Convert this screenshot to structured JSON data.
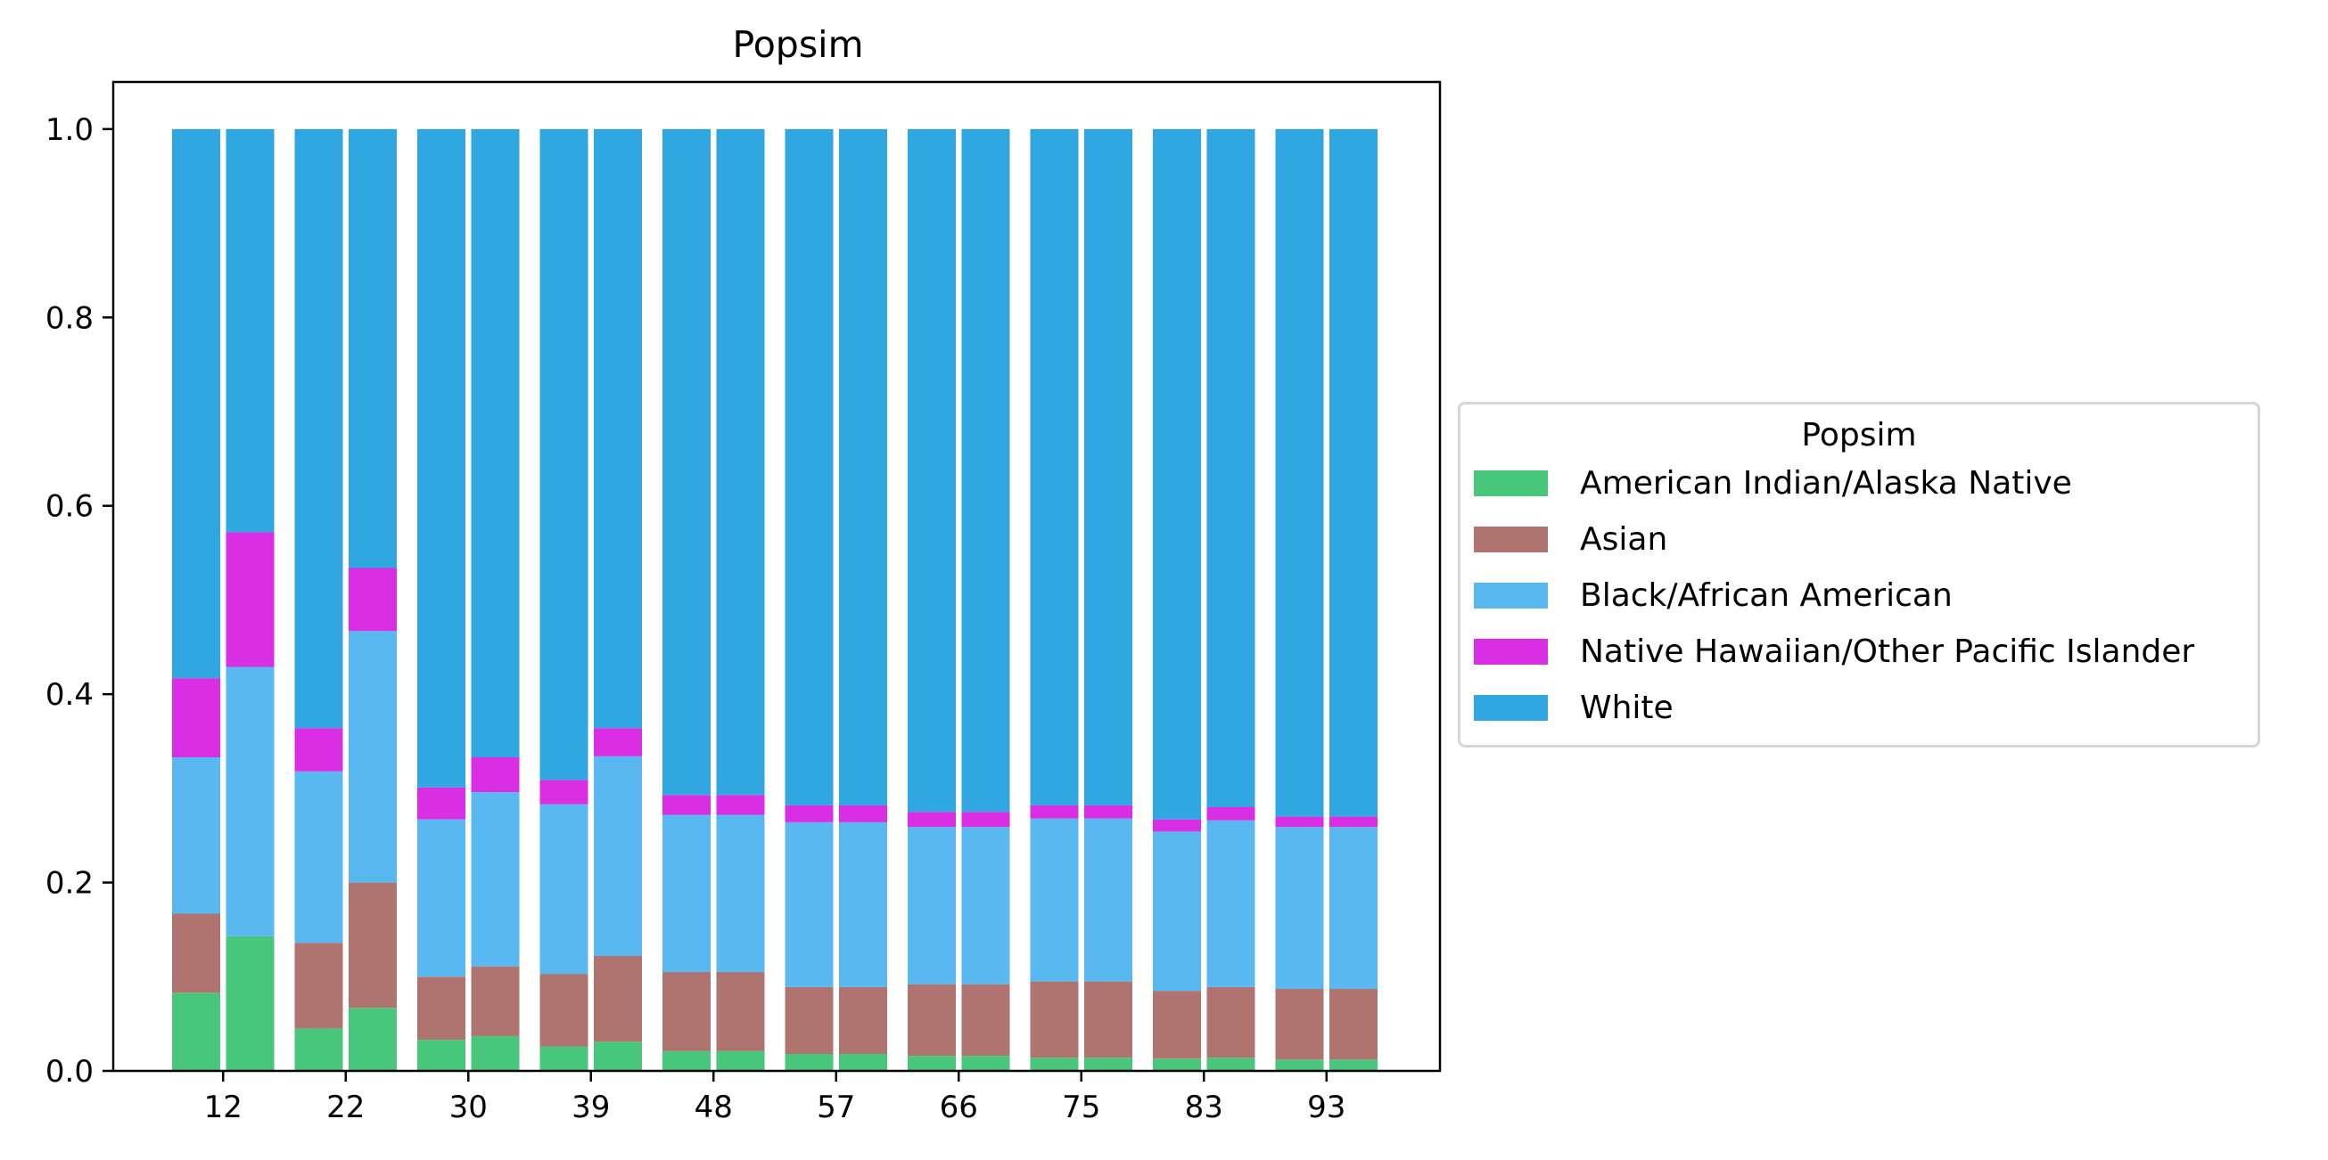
{
  "chart_data": {
    "type": "bar",
    "stacked": true,
    "title": "Popsim",
    "xlabel": "",
    "ylabel": "",
    "ylim": [
      0,
      1.05
    ],
    "yticks": [
      0.0,
      0.2,
      0.4,
      0.6,
      0.8,
      1.0
    ],
    "ytick_labels": [
      "0.0",
      "0.2",
      "0.4",
      "0.6",
      "0.8",
      "1.0"
    ],
    "xticks": [
      {
        "label": "12",
        "after_bar": 0
      },
      {
        "label": "22",
        "after_bar": 2
      },
      {
        "label": "30",
        "after_bar": 4
      },
      {
        "label": "39",
        "after_bar": 6
      },
      {
        "label": "48",
        "after_bar": 8
      },
      {
        "label": "57",
        "after_bar": 10
      },
      {
        "label": "66",
        "after_bar": 12
      },
      {
        "label": "75",
        "after_bar": 14
      },
      {
        "label": "83",
        "after_bar": 16
      },
      {
        "label": "93",
        "after_bar": 18
      }
    ],
    "bar_count": 20,
    "series": [
      {
        "name": "American Indian/Alaska Native",
        "color": "#48c67c",
        "values": [
          0.083,
          0.143,
          0.045,
          0.067,
          0.033,
          0.037,
          0.026,
          0.031,
          0.021,
          0.021,
          0.018,
          0.018,
          0.016,
          0.016,
          0.014,
          0.014,
          0.013,
          0.014,
          0.012,
          0.012
        ]
      },
      {
        "name": "Asian",
        "color": "#b07470",
        "values": [
          0.084,
          0.0,
          0.091,
          0.133,
          0.067,
          0.074,
          0.077,
          0.091,
          0.084,
          0.084,
          0.071,
          0.071,
          0.076,
          0.076,
          0.081,
          0.081,
          0.072,
          0.075,
          0.075,
          0.075
        ]
      },
      {
        "name": "Black/African American",
        "color": "#5ab8f0",
        "values": [
          0.166,
          0.286,
          0.182,
          0.267,
          0.167,
          0.185,
          0.18,
          0.212,
          0.167,
          0.167,
          0.175,
          0.175,
          0.167,
          0.167,
          0.173,
          0.173,
          0.169,
          0.177,
          0.172,
          0.172
        ]
      },
      {
        "name": "Native Hawaiian/Other Pacific Islander",
        "color": "#da2ee4",
        "values": [
          0.084,
          0.143,
          0.046,
          0.067,
          0.034,
          0.037,
          0.026,
          0.03,
          0.021,
          0.021,
          0.018,
          0.018,
          0.016,
          0.016,
          0.014,
          0.014,
          0.013,
          0.014,
          0.011,
          0.011
        ]
      },
      {
        "name": "White",
        "color": "#31a7e2",
        "values": [
          0.583,
          0.428,
          0.636,
          0.466,
          0.699,
          0.667,
          0.691,
          0.636,
          0.707,
          0.707,
          0.718,
          0.718,
          0.725,
          0.725,
          0.718,
          0.718,
          0.733,
          0.72,
          0.73,
          0.73
        ]
      }
    ],
    "legend": {
      "title": "Popsim",
      "placement": "center-right outside"
    }
  }
}
